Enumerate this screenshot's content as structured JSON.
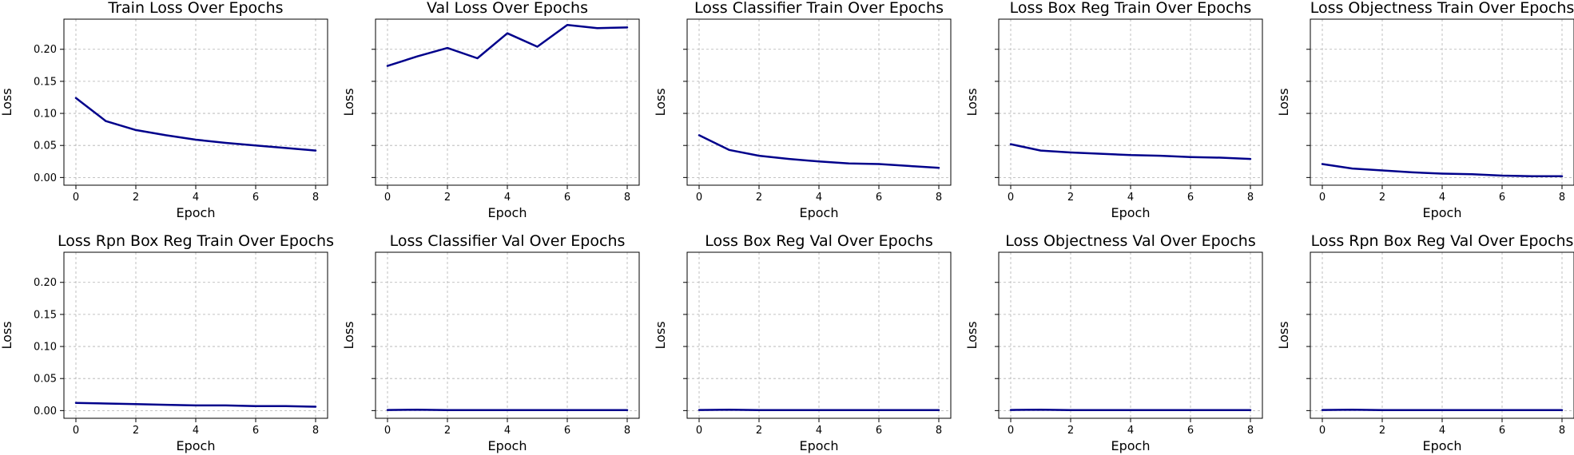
{
  "style": {
    "line_color": "#00008b",
    "grid_color": "#b0b0b0",
    "background": "#ffffff"
  },
  "chart_data": [
    {
      "type": "line",
      "title": "Train Loss Over Epochs",
      "xlabel": "Epoch",
      "ylabel": "Loss",
      "grid": true,
      "sharey": true,
      "x": [
        0,
        1,
        2,
        3,
        4,
        5,
        6,
        7,
        8
      ],
      "xticks": [
        0,
        2,
        4,
        6,
        8
      ],
      "xlim": [
        -0.4,
        8.4
      ],
      "yticks": [
        0.0,
        0.05,
        0.1,
        0.15,
        0.2
      ],
      "ytick_labels": [
        "0.00",
        "0.05",
        "0.10",
        "0.15",
        "0.20"
      ],
      "ylim": [
        -0.012,
        0.247
      ],
      "series": [
        {
          "values": [
            0.124,
            0.088,
            0.074,
            0.066,
            0.059,
            0.054,
            0.05,
            0.046,
            0.042
          ]
        }
      ]
    },
    {
      "type": "line",
      "title": "Val Loss Over Epochs",
      "xlabel": "Epoch",
      "ylabel": "Loss",
      "grid": true,
      "sharey": true,
      "x": [
        0,
        1,
        2,
        3,
        4,
        5,
        6,
        7,
        8
      ],
      "xticks": [
        0,
        2,
        4,
        6,
        8
      ],
      "xlim": [
        -0.4,
        8.4
      ],
      "yticks": [
        0.0,
        0.05,
        0.1,
        0.15,
        0.2
      ],
      "ytick_labels": [],
      "ylim": [
        -0.012,
        0.247
      ],
      "series": [
        {
          "values": [
            0.174,
            0.189,
            0.202,
            0.186,
            0.225,
            0.204,
            0.238,
            0.233,
            0.234
          ]
        }
      ]
    },
    {
      "type": "line",
      "title": "Loss Classifier Train Over Epochs",
      "xlabel": "Epoch",
      "ylabel": "Loss",
      "grid": true,
      "sharey": true,
      "x": [
        0,
        1,
        2,
        3,
        4,
        5,
        6,
        7,
        8
      ],
      "xticks": [
        0,
        2,
        4,
        6,
        8
      ],
      "xlim": [
        -0.4,
        8.4
      ],
      "yticks": [
        0.0,
        0.05,
        0.1,
        0.15,
        0.2
      ],
      "ytick_labels": [],
      "ylim": [
        -0.012,
        0.247
      ],
      "series": [
        {
          "values": [
            0.066,
            0.043,
            0.034,
            0.029,
            0.025,
            0.022,
            0.021,
            0.018,
            0.015
          ]
        }
      ]
    },
    {
      "type": "line",
      "title": "Loss Box Reg Train Over Epochs",
      "xlabel": "Epoch",
      "ylabel": "Loss",
      "grid": true,
      "sharey": true,
      "x": [
        0,
        1,
        2,
        3,
        4,
        5,
        6,
        7,
        8
      ],
      "xticks": [
        0,
        2,
        4,
        6,
        8
      ],
      "xlim": [
        -0.4,
        8.4
      ],
      "yticks": [
        0.0,
        0.05,
        0.1,
        0.15,
        0.2
      ],
      "ytick_labels": [],
      "ylim": [
        -0.012,
        0.247
      ],
      "series": [
        {
          "values": [
            0.052,
            0.042,
            0.039,
            0.037,
            0.035,
            0.034,
            0.032,
            0.031,
            0.029
          ]
        }
      ]
    },
    {
      "type": "line",
      "title": "Loss Objectness Train Over Epochs",
      "xlabel": "Epoch",
      "ylabel": "Loss",
      "grid": true,
      "sharey": true,
      "x": [
        0,
        1,
        2,
        3,
        4,
        5,
        6,
        7,
        8
      ],
      "xticks": [
        0,
        2,
        4,
        6,
        8
      ],
      "xlim": [
        -0.4,
        8.4
      ],
      "yticks": [
        0.0,
        0.05,
        0.1,
        0.15,
        0.2
      ],
      "ytick_labels": [],
      "ylim": [
        -0.012,
        0.247
      ],
      "series": [
        {
          "values": [
            0.021,
            0.014,
            0.011,
            0.008,
            0.006,
            0.005,
            0.003,
            0.002,
            0.002
          ]
        }
      ]
    },
    {
      "type": "line",
      "title": "Loss Rpn Box Reg Train Over Epochs",
      "xlabel": "Epoch",
      "ylabel": "Loss",
      "grid": true,
      "sharey": true,
      "x": [
        0,
        1,
        2,
        3,
        4,
        5,
        6,
        7,
        8
      ],
      "xticks": [
        0,
        2,
        4,
        6,
        8
      ],
      "xlim": [
        -0.4,
        8.4
      ],
      "yticks": [
        0.0,
        0.05,
        0.1,
        0.15,
        0.2
      ],
      "ytick_labels": [
        "0.00",
        "0.05",
        "0.10",
        "0.15",
        "0.20"
      ],
      "ylim": [
        -0.012,
        0.247
      ],
      "series": [
        {
          "values": [
            0.012,
            0.011,
            0.01,
            0.009,
            0.008,
            0.008,
            0.007,
            0.007,
            0.006
          ]
        }
      ]
    },
    {
      "type": "line",
      "title": "Loss Classifier Val Over Epochs",
      "xlabel": "Epoch",
      "ylabel": "Loss",
      "grid": true,
      "sharey": true,
      "x": [
        0,
        1,
        2,
        3,
        4,
        5,
        6,
        7,
        8
      ],
      "xticks": [
        0,
        2,
        4,
        6,
        8
      ],
      "xlim": [
        -0.4,
        8.4
      ],
      "yticks": [
        0.0,
        0.05,
        0.1,
        0.15,
        0.2
      ],
      "ytick_labels": [],
      "ylim": [
        -0.012,
        0.247
      ],
      "series": [
        {
          "values": [
            0.001,
            0.0015,
            0.0008,
            0.0008,
            0.0008,
            0.0008,
            0.0008,
            0.0008,
            0.0008
          ]
        }
      ]
    },
    {
      "type": "line",
      "title": "Loss Box Reg Val Over Epochs",
      "xlabel": "Epoch",
      "ylabel": "Loss",
      "grid": true,
      "sharey": true,
      "x": [
        0,
        1,
        2,
        3,
        4,
        5,
        6,
        7,
        8
      ],
      "xticks": [
        0,
        2,
        4,
        6,
        8
      ],
      "xlim": [
        -0.4,
        8.4
      ],
      "yticks": [
        0.0,
        0.05,
        0.1,
        0.15,
        0.2
      ],
      "ytick_labels": [],
      "ylim": [
        -0.012,
        0.247
      ],
      "series": [
        {
          "values": [
            0.001,
            0.0015,
            0.0008,
            0.0008,
            0.0008,
            0.0008,
            0.0008,
            0.0008,
            0.0008
          ]
        }
      ]
    },
    {
      "type": "line",
      "title": "Loss Objectness Val Over Epochs",
      "xlabel": "Epoch",
      "ylabel": "Loss",
      "grid": true,
      "sharey": true,
      "x": [
        0,
        1,
        2,
        3,
        4,
        5,
        6,
        7,
        8
      ],
      "xticks": [
        0,
        2,
        4,
        6,
        8
      ],
      "xlim": [
        -0.4,
        8.4
      ],
      "yticks": [
        0.0,
        0.05,
        0.1,
        0.15,
        0.2
      ],
      "ytick_labels": [],
      "ylim": [
        -0.012,
        0.247
      ],
      "series": [
        {
          "values": [
            0.001,
            0.0015,
            0.0008,
            0.0008,
            0.0008,
            0.0008,
            0.0008,
            0.0008,
            0.0008
          ]
        }
      ]
    },
    {
      "type": "line",
      "title": "Loss Rpn Box Reg Val Over Epochs",
      "xlabel": "Epoch",
      "ylabel": "Loss",
      "grid": true,
      "sharey": true,
      "x": [
        0,
        1,
        2,
        3,
        4,
        5,
        6,
        7,
        8
      ],
      "xticks": [
        0,
        2,
        4,
        6,
        8
      ],
      "xlim": [
        -0.4,
        8.4
      ],
      "yticks": [
        0.0,
        0.05,
        0.1,
        0.15,
        0.2
      ],
      "ytick_labels": [],
      "ylim": [
        -0.012,
        0.247
      ],
      "series": [
        {
          "values": [
            0.001,
            0.0015,
            0.0008,
            0.0008,
            0.0008,
            0.0008,
            0.0008,
            0.0008,
            0.0008
          ]
        }
      ]
    }
  ]
}
